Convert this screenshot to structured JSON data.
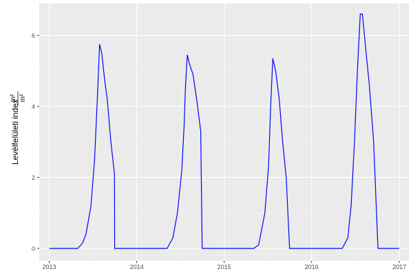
{
  "chart_data": {
    "type": "line",
    "xlabel": "",
    "ylabel": "Levélfelületi index",
    "ylabel_unit_num": "m²",
    "ylabel_unit_den": "m²",
    "xlim": [
      "2012-11-20",
      "2017-02-10"
    ],
    "ylim": [
      -0.35,
      6.9
    ],
    "x_ticks": [
      "2013",
      "2014",
      "2015",
      "2016",
      "2017"
    ],
    "y_ticks": [
      0,
      2,
      4,
      6
    ],
    "grid": true,
    "line_color": "#0000FF",
    "panel_color": "#EBEBEB",
    "series": [
      {
        "x": [
          "2013-01-01",
          "2013-04-30",
          "2013-05-20",
          "2013-06-03",
          "2013-06-24",
          "2013-07-09",
          "2013-07-21",
          "2013-07-30",
          "2013-08-08",
          "2013-08-19",
          "2013-08-31",
          "2013-09-15",
          "2013-09-30",
          "2013-10-01",
          "2014-05-08",
          "2014-06-01",
          "2014-06-20",
          "2014-07-08",
          "2014-07-18",
          "2014-07-23",
          "2014-07-31",
          "2014-08-09",
          "2014-08-24",
          "2014-09-08",
          "2014-09-25",
          "2014-10-01",
          "2015-05-05",
          "2015-05-25",
          "2015-06-20",
          "2015-07-05",
          "2015-07-14",
          "2015-07-23",
          "2015-08-04",
          "2015-08-19",
          "2015-09-02",
          "2015-09-17",
          "2015-10-01",
          "2016-05-08",
          "2016-05-31",
          "2016-06-14",
          "2016-06-28",
          "2016-07-10",
          "2016-07-22",
          "2016-07-31",
          "2016-08-14",
          "2016-08-29",
          "2016-09-16",
          "2016-10-04",
          "2017-01-01"
        ],
        "y": [
          0,
          0,
          0.15,
          0.4,
          1.2,
          2.5,
          4.3,
          5.75,
          5.5,
          4.8,
          4.2,
          3.0,
          2.1,
          0,
          0,
          0.3,
          1.0,
          2.2,
          3.5,
          4.5,
          5.45,
          5.2,
          4.9,
          4.2,
          3.3,
          0,
          0,
          0.1,
          1.0,
          2.3,
          4.0,
          5.35,
          5.0,
          4.2,
          3.0,
          2.0,
          0,
          0,
          0.3,
          1.2,
          3.0,
          5.0,
          6.6,
          6.6,
          5.6,
          4.6,
          3.0,
          0,
          0
        ]
      }
    ]
  }
}
